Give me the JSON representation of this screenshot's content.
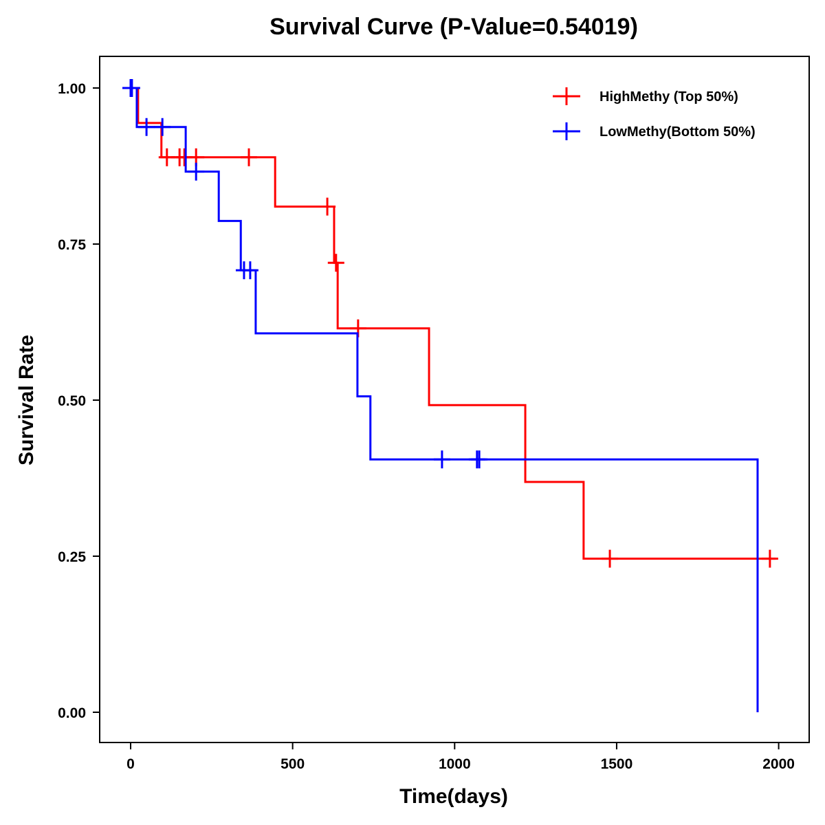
{
  "chart_data": {
    "type": "line",
    "subtype": "kaplan-meier-step",
    "title": "Survival Curve (P-Value=0.54019)",
    "xlabel": "Time(days)",
    "ylabel": "Survival Rate",
    "xlim": [
      -95,
      2080
    ],
    "ylim": [
      -0.046,
      1.05
    ],
    "xticks": [
      0,
      500,
      1000,
      1500,
      2000
    ],
    "xtick_labels": [
      "0",
      "500",
      "1000",
      "1500",
      "2000"
    ],
    "yticks": [
      0,
      0.25,
      0.5,
      0.75,
      1.0
    ],
    "ytick_labels": [
      "0.00",
      "0.25",
      "0.50",
      "0.75",
      "1.00"
    ],
    "grid": false,
    "legend_position": "top-right",
    "series": [
      {
        "name": "HighMethy (Top 50%)",
        "color": "#ff0000",
        "steps": [
          [
            0,
            1.0
          ],
          [
            23,
            0.944
          ],
          [
            95,
            0.889
          ],
          [
            446,
            0.81
          ],
          [
            628,
            0.72
          ],
          [
            639,
            0.615
          ],
          [
            921,
            0.492
          ],
          [
            1218,
            0.369
          ],
          [
            1398,
            0.246
          ]
        ],
        "end_time": 1990,
        "censored": [
          [
            112,
            0.889
          ],
          [
            151,
            0.889
          ],
          [
            166,
            0.889
          ],
          [
            202,
            0.889
          ],
          [
            365,
            0.889
          ],
          [
            607,
            0.81
          ],
          [
            634,
            0.72
          ],
          [
            702,
            0.615
          ],
          [
            1479,
            0.246
          ],
          [
            1973,
            0.246
          ]
        ]
      },
      {
        "name": "LowMethy(Bottom 50%)",
        "color": "#0000ff",
        "steps": [
          [
            0,
            1.0
          ],
          [
            19,
            0.9375
          ],
          [
            170,
            0.866
          ],
          [
            272,
            0.787
          ],
          [
            340,
            0.708
          ],
          [
            386,
            0.607
          ],
          [
            700,
            0.506
          ],
          [
            740,
            0.405
          ],
          [
            1935,
            0.0
          ]
        ],
        "end_time": 1935,
        "start_time": -15,
        "censored": [
          [
            0,
            1.0
          ],
          [
            4,
            1.0
          ],
          [
            49,
            0.9375
          ],
          [
            98,
            0.9375
          ],
          [
            202,
            0.866
          ],
          [
            350,
            0.708
          ],
          [
            369,
            0.708
          ],
          [
            961,
            0.405
          ],
          [
            1069,
            0.405
          ],
          [
            1076,
            0.405
          ]
        ]
      }
    ]
  }
}
